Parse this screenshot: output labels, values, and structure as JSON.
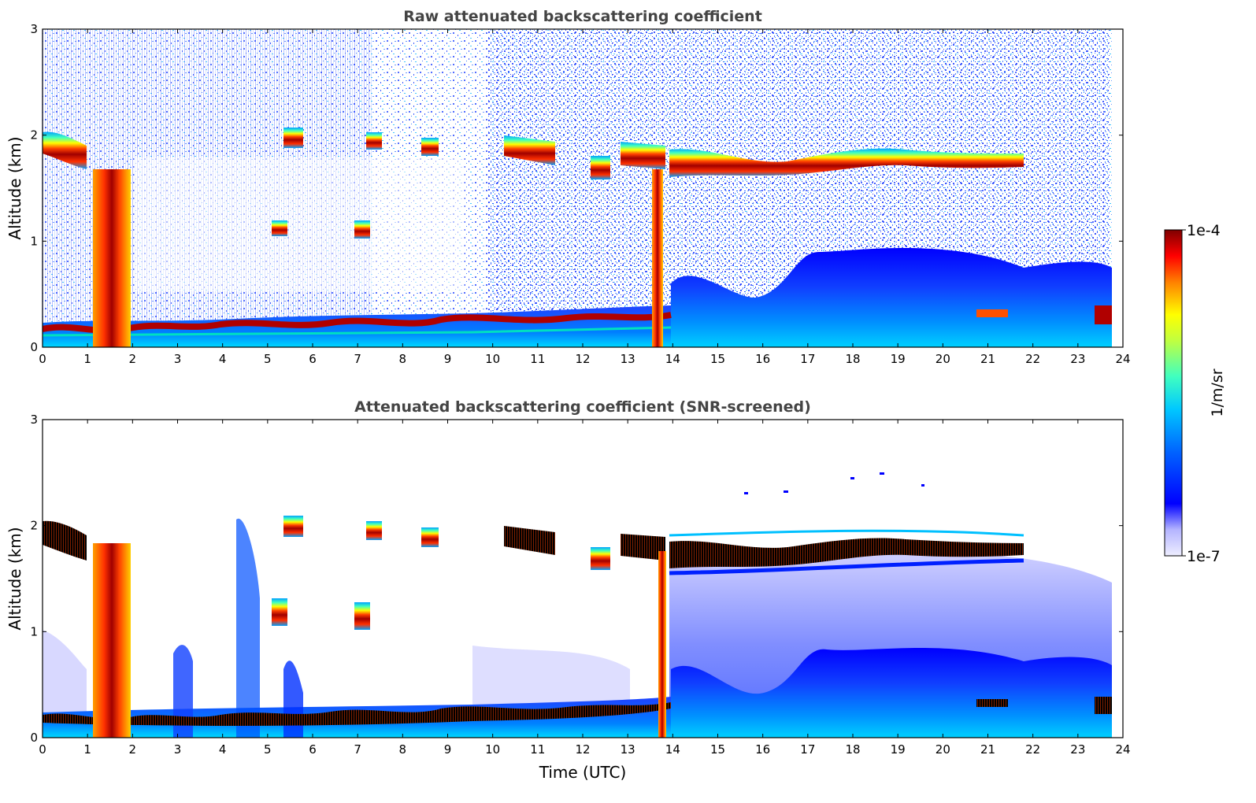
{
  "chart_data": [
    {
      "type": "heatmap",
      "title": "Raw attenuated backscattering coefficient",
      "xlabel": "",
      "ylabel": "Altitude (km)",
      "xlim": [
        0,
        24
      ],
      "ylim": [
        0,
        3
      ],
      "xticks": [
        "0",
        "1",
        "2",
        "3",
        "4",
        "5",
        "6",
        "7",
        "8",
        "9",
        "10",
        "11",
        "12",
        "13",
        "14",
        "15",
        "16",
        "17",
        "18",
        "19",
        "20",
        "21",
        "22",
        "23",
        "24"
      ],
      "yticks": [
        "0",
        "1",
        "2",
        "3"
      ],
      "features": {
        "boundary_layer_top_km": [
          [
            0,
            0.18
          ],
          [
            1,
            0.15
          ],
          [
            2,
            0.18
          ],
          [
            3,
            0.2
          ],
          [
            4,
            0.2
          ],
          [
            5,
            0.18
          ],
          [
            6,
            0.2
          ],
          [
            7,
            0.18
          ],
          [
            8,
            0.2
          ],
          [
            9,
            0.22
          ],
          [
            10,
            0.25
          ],
          [
            11,
            0.25
          ],
          [
            12,
            0.27
          ],
          [
            13,
            0.28
          ],
          [
            13.9,
            0.3
          ]
        ],
        "cloud_layer_km": [
          [
            0,
            1.85
          ],
          [
            0.6,
            1.75
          ],
          [
            5.5,
            1.98
          ],
          [
            7.3,
            1.95
          ],
          [
            8.7,
            1.88
          ],
          [
            10.5,
            1.88
          ],
          [
            11.0,
            1.78
          ],
          [
            12.3,
            1.7
          ],
          [
            13.2,
            1.78
          ],
          [
            14.2,
            1.72
          ],
          [
            16,
            1.7
          ],
          [
            18,
            1.78
          ],
          [
            20,
            1.76
          ],
          [
            21.8,
            1.78
          ]
        ],
        "precip_shafts_utc": [
          [
            1.2,
            1.9
          ],
          [
            13.4,
            13.8
          ]
        ]
      }
    },
    {
      "type": "heatmap",
      "title": "Attenuated backscattering coefficient (SNR-screened)",
      "xlabel": "Time (UTC)",
      "ylabel": "Altitude (km)",
      "xlim": [
        0,
        24
      ],
      "ylim": [
        0,
        3
      ],
      "xticks": [
        "0",
        "1",
        "2",
        "3",
        "4",
        "5",
        "6",
        "7",
        "8",
        "9",
        "10",
        "11",
        "12",
        "13",
        "14",
        "15",
        "16",
        "17",
        "18",
        "19",
        "20",
        "21",
        "22",
        "23",
        "24"
      ],
      "yticks": [
        "0",
        "1",
        "2",
        "3"
      ]
    }
  ],
  "colorbar": {
    "max_label": "1e-4",
    "min_label": "1e-7",
    "unit_label": "1/m/sr",
    "colors": [
      "#eeeeff",
      "#c8c8ff",
      "#9696ff",
      "#0000ff",
      "#0050ff",
      "#00a0ff",
      "#00d8ff",
      "#40ffc0",
      "#a0ff60",
      "#ffff00",
      "#ffa000",
      "#ff4000",
      "#d00000",
      "#7f0000"
    ]
  }
}
